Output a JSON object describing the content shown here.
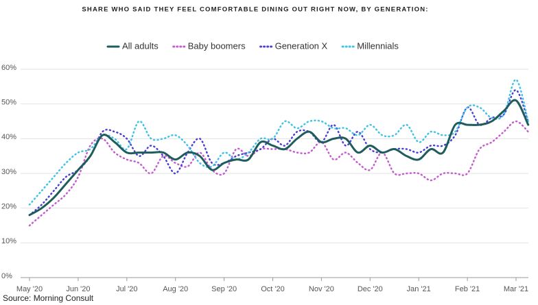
{
  "chart_data": {
    "type": "line",
    "title": "SHARE WHO SAID THEY FEEL COMFORTABLE DINING OUT RIGHT NOW, BY GENERATION:",
    "source": "Source: Morning Consult",
    "categories": [
      "May '20",
      null,
      null,
      null,
      "Jun '20",
      null,
      null,
      null,
      "Jul '20",
      null,
      null,
      null,
      "Aug '20",
      null,
      null,
      null,
      "Sep '20",
      null,
      null,
      null,
      "Oct '20",
      null,
      null,
      null,
      "Nov '20",
      null,
      null,
      null,
      "Dec '20",
      null,
      null,
      null,
      "Jan '21",
      null,
      null,
      null,
      "Feb '21",
      null,
      null,
      null,
      "Mar '21",
      null
    ],
    "series": [
      {
        "name": "All adults",
        "color": "#1f5c5c",
        "dash": "solid",
        "values": [
          18,
          20,
          23,
          27,
          31,
          35,
          41,
          39,
          36,
          36,
          36,
          36,
          34,
          36,
          35,
          31,
          33,
          34,
          34,
          39,
          38,
          37,
          40,
          42,
          39,
          40,
          40,
          36,
          38,
          36,
          37,
          35,
          34,
          37,
          36,
          44,
          44,
          44,
          45,
          48,
          51,
          44
        ]
      },
      {
        "name": "Baby boomers",
        "color": "#c45ccf",
        "dash": "dotted",
        "values": [
          15,
          18,
          21,
          24,
          29,
          38,
          40,
          36,
          34,
          33,
          30,
          35,
          33,
          32,
          36,
          31,
          30,
          37,
          35,
          37,
          37,
          37,
          36,
          36,
          39,
          34,
          36,
          33,
          31,
          36,
          30,
          30,
          30,
          28,
          30,
          30,
          30,
          37,
          39,
          42,
          45,
          42
        ]
      },
      {
        "name": "Generation X",
        "color": "#4a3fd6",
        "dash": "dotted",
        "values": [
          18,
          21,
          25,
          29,
          31,
          35,
          42,
          42,
          40,
          35,
          38,
          35,
          30,
          36,
          40,
          33,
          33,
          35,
          36,
          37,
          40,
          38,
          42,
          42,
          39,
          44,
          38,
          42,
          37,
          36,
          37,
          37,
          36,
          38,
          38,
          41,
          49,
          44,
          46,
          47,
          54,
          45
        ]
      },
      {
        "name": "Millennials",
        "color": "#3ec3e6",
        "dash": "dotted",
        "values": [
          21,
          25,
          29,
          33,
          36,
          37,
          41,
          40,
          37,
          45,
          40,
          40,
          41,
          38,
          33,
          32,
          36,
          34,
          36,
          40,
          40,
          45,
          43,
          45,
          45,
          43,
          43,
          41,
          44,
          41,
          41,
          44,
          39,
          42,
          41,
          42,
          49,
          49,
          46,
          47,
          57,
          45
        ]
      }
    ],
    "ylim": [
      0,
      60
    ],
    "yticks": [
      {
        "value": 0,
        "label": "0%"
      },
      {
        "value": 10,
        "label": "10%"
      },
      {
        "value": 20,
        "label": "20%"
      },
      {
        "value": 30,
        "label": "30%"
      },
      {
        "value": 40,
        "label": "40%"
      },
      {
        "value": 50,
        "label": "50%"
      },
      {
        "value": 60,
        "label": "60%"
      }
    ],
    "grid": true,
    "legend": "top"
  }
}
